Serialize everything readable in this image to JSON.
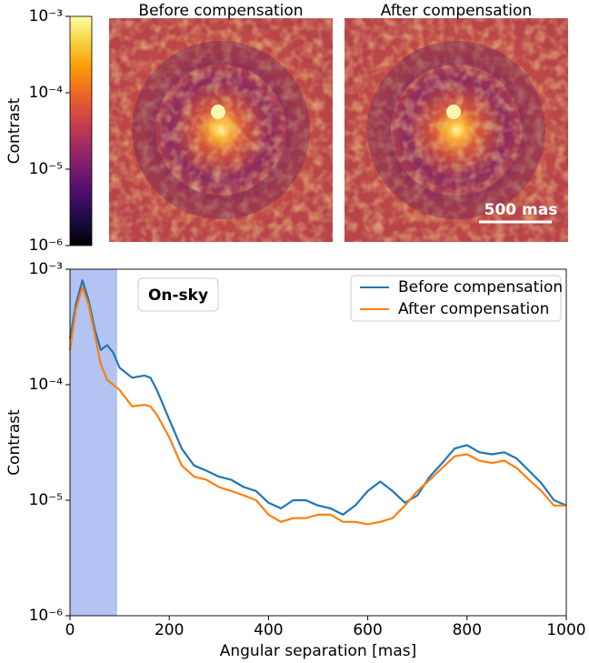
{
  "chart_data": [
    {
      "type": "image",
      "panels": [
        {
          "title": "Before compensation"
        },
        {
          "title": "After compensation"
        }
      ],
      "scale_bar_label": "500 mas",
      "colormap": "inferno",
      "colorbar": {
        "label": "Contrast",
        "log_scale": true,
        "ylim": [
          1e-06,
          0.001
        ],
        "yticks": [
          {
            "value": 1e-06,
            "label": "10⁻⁶"
          },
          {
            "value": 1e-05,
            "label": "10⁻⁵"
          },
          {
            "value": 0.0001,
            "label": "10⁻⁴"
          },
          {
            "value": 0.001,
            "label": "10⁻³"
          }
        ]
      }
    },
    {
      "type": "line",
      "annotation": "On-sky",
      "xlabel": "Angular separation [mas]",
      "ylabel": "Contrast",
      "log_scale": true,
      "legend": "upper right",
      "shaded_region": [
        0,
        95
      ],
      "shaded_color": "#b3c3f2",
      "xlim": [
        0,
        1000
      ],
      "xticks": [
        0,
        200,
        400,
        600,
        800,
        1000
      ],
      "ylim": [
        1e-06,
        0.001
      ],
      "yticks": [
        {
          "value": 1e-06,
          "label": "10⁻⁶"
        },
        {
          "value": 1e-05,
          "label": "10⁻⁵"
        },
        {
          "value": 0.0001,
          "label": "10⁻⁴"
        },
        {
          "value": 0.001,
          "label": "10⁻³"
        }
      ],
      "x": [
        0,
        12,
        25,
        37,
        50,
        62,
        75,
        87,
        100,
        125,
        150,
        162,
        175,
        200,
        225,
        250,
        275,
        300,
        325,
        350,
        375,
        400,
        425,
        450,
        475,
        500,
        525,
        550,
        575,
        600,
        625,
        650,
        675,
        700,
        725,
        750,
        775,
        800,
        825,
        850,
        875,
        900,
        925,
        950,
        975,
        1000
      ],
      "series": [
        {
          "name": "Before compensation",
          "color": "#1f77b4",
          "values": [
            0.00025,
            0.0005,
            0.0008,
            0.00055,
            0.0003,
            0.0002,
            0.00022,
            0.00019,
            0.00014,
            0.000115,
            0.00012,
            0.000115,
            9e-05,
            5e-05,
            2.8e-05,
            2e-05,
            1.8e-05,
            1.6e-05,
            1.5e-05,
            1.3e-05,
            1.2e-05,
            9.5e-06,
            8.5e-06,
            1e-05,
            1e-05,
            9e-06,
            8.5e-06,
            7.5e-06,
            9e-06,
            1.2e-05,
            1.45e-05,
            1.2e-05,
            9.5e-06,
            1.1e-05,
            1.6e-05,
            2.1e-05,
            2.8e-05,
            3e-05,
            2.6e-05,
            2.5e-05,
            2.6e-05,
            2.3e-05,
            1.8e-05,
            1.4e-05,
            1e-05,
            9e-06
          ]
        },
        {
          "name": "After compensation",
          "color": "#ff7f0e",
          "values": [
            0.0002,
            0.00045,
            0.0007,
            0.0005,
            0.00027,
            0.00015,
            0.00011,
            0.0001,
            9e-05,
            6.5e-05,
            6.7e-05,
            6.5e-05,
            5.5e-05,
            3.5e-05,
            2e-05,
            1.6e-05,
            1.5e-05,
            1.3e-05,
            1.2e-05,
            1.1e-05,
            1e-05,
            7.5e-06,
            6.5e-06,
            7e-06,
            7e-06,
            7.5e-06,
            7.5e-06,
            6.5e-06,
            6.5e-06,
            6.2e-06,
            6.5e-06,
            7e-06,
            9e-06,
            1.2e-05,
            1.5e-05,
            1.9e-05,
            2.4e-05,
            2.5e-05,
            2.2e-05,
            2.1e-05,
            2.2e-05,
            1.9e-05,
            1.5e-05,
            1.2e-05,
            9e-06,
            9e-06
          ]
        }
      ]
    }
  ]
}
